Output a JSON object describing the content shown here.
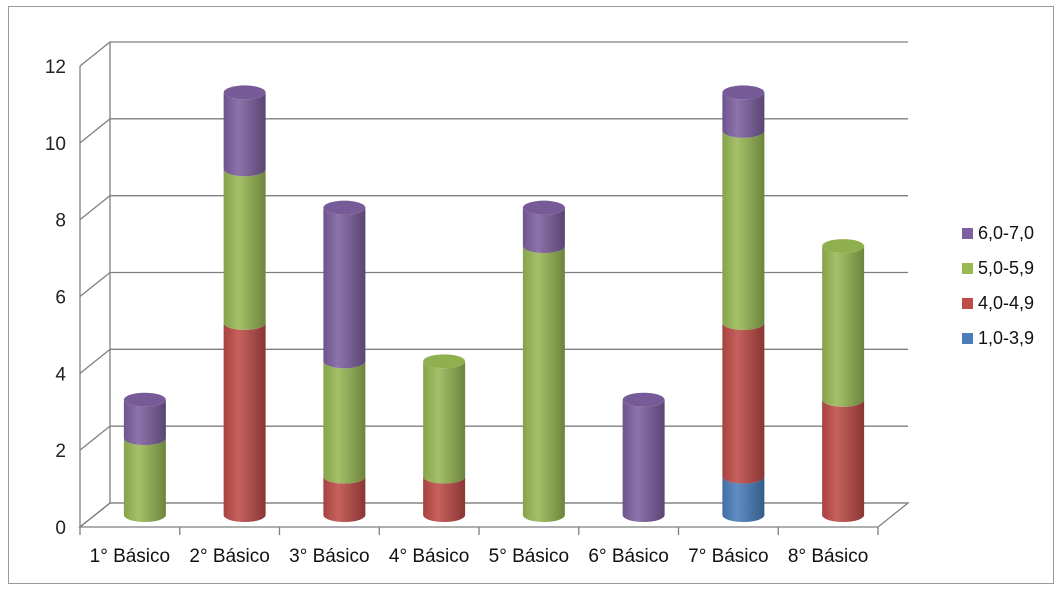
{
  "chart_data": {
    "type": "bar",
    "stacked": true,
    "style": "3d-cylinder",
    "title": "",
    "xlabel": "",
    "ylabel": "",
    "categories": [
      "1° Básico",
      "2° Básico",
      "3° Básico",
      "4° Básico",
      "5° Básico",
      "6° Básico",
      "7° Básico",
      "8° Básico"
    ],
    "series": [
      {
        "name": "1,0-3,9",
        "color": "#4a7ebb",
        "values": [
          0,
          0,
          0,
          0,
          0,
          0,
          1,
          0
        ]
      },
      {
        "name": "4,0-4,9",
        "color": "#be4b48",
        "values": [
          0,
          5,
          1,
          1,
          0,
          0,
          4,
          3
        ]
      },
      {
        "name": "5,0-5,9",
        "color": "#98b954",
        "values": [
          2,
          4,
          3,
          3,
          7,
          0,
          5,
          4
        ]
      },
      {
        "name": "6,0-7,0",
        "color": "#7d60a0",
        "values": [
          1,
          2,
          4,
          0,
          1,
          3,
          1,
          0
        ]
      }
    ],
    "ylim": [
      0,
      12
    ],
    "yticks": [
      0,
      2,
      4,
      6,
      8,
      10,
      12
    ],
    "grid": true,
    "legend": "right"
  }
}
